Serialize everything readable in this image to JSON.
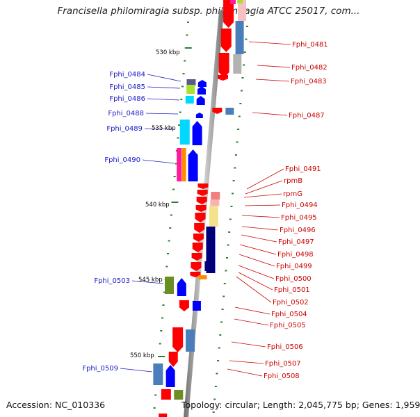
{
  "title": "Francisella philomiragia subsp. philomiragia ATCC 25017, com...",
  "footer": {
    "accession": "Accession: NC_010336",
    "topology": "Topology: circular; Length: 2,045,775 bp; Genes: 1,959"
  },
  "colors": {
    "backbone": "#8c8c8c",
    "tick": "#2e7d32",
    "label_left": "#1a1ac8",
    "label_right": "#cc0000",
    "gene_red": "#ff0000",
    "gene_blue": "#0000ff",
    "navy": "#00007a",
    "steelblue": "#4a7ebb",
    "cyan": "#00d8ff",
    "lime": "#a6e22e",
    "olive": "#6b8e23",
    "magenta": "#ff1a9c",
    "orange": "#ff8c00",
    "khaki": "#f3e18c",
    "salmon": "#f08080",
    "grey": "#b3b3b3"
  },
  "scale_labels": [
    "530 kbp",
    "535 kbp",
    "540 kbp",
    "545 kbp",
    "550 kbp"
  ],
  "left_labels": [
    "Fphi_0484",
    "Fphi_0485",
    "Fphi_0486",
    "Fphi_0488",
    "Fphi_0489",
    "Fphi_0490",
    "Fphi_0503",
    "Fphi_0509"
  ],
  "right_labels": [
    "Fphi_0481",
    "Fphi_0482",
    "Fphi_0483",
    "Fphi_0487",
    "Fphi_0491",
    "rpmB",
    "rpmG",
    "Fphi_0494",
    "Fphi_0495",
    "Fphi_0496",
    "Fphi_0497",
    "Fphi_0498",
    "Fphi_0499",
    "Fphi_0500",
    "Fphi_0501",
    "Fphi_0502",
    "Fphi_0504",
    "Fphi_0505",
    "Fphi_0506",
    "Fphi_0507",
    "Fphi_0508"
  ]
}
